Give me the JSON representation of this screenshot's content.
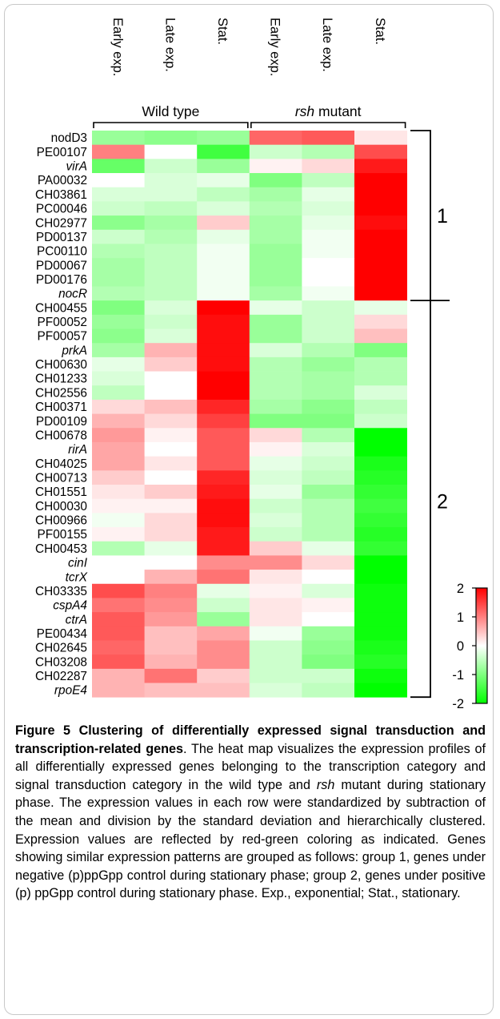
{
  "figure": {
    "conditions": [
      "Early exp.",
      "Late exp.",
      "Stat.",
      "Early exp.",
      "Late exp.",
      "Stat."
    ],
    "groups": [
      {
        "label": "Wild type",
        "italic": false
      },
      {
        "label": "rsh",
        "label_suffix": " mutant",
        "italic": true
      }
    ],
    "cluster_labels": [
      "1",
      "2"
    ],
    "colorbar": {
      "ticks": [
        "2",
        "1",
        "0",
        "-1",
        "-2"
      ],
      "low_color": "#00ff00",
      "mid_color": "#ffffff",
      "high_color": "#ff0000"
    }
  },
  "chart_data": {
    "type": "heatmap",
    "columns": [
      "Early exp.",
      "Late exp.",
      "Stat.",
      "Early exp.",
      "Late exp.",
      "Stat."
    ],
    "column_groups": [
      "Wild type",
      "Wild type",
      "Wild type",
      "rsh mutant",
      "rsh mutant",
      "rsh mutant"
    ],
    "value_range": [
      -2,
      2
    ],
    "rows": [
      {
        "gene": "nodD3",
        "italic": false,
        "cluster": 1,
        "values": [
          -0.8,
          -0.9,
          -0.8,
          1.2,
          1.3,
          0.2
        ]
      },
      {
        "gene": "PE00107",
        "italic": false,
        "cluster": 1,
        "values": [
          1.0,
          0.0,
          -1.5,
          -0.4,
          -0.6,
          1.4
        ]
      },
      {
        "gene": "virA",
        "italic": true,
        "cluster": 1,
        "values": [
          -1.2,
          -0.4,
          -0.8,
          0.1,
          0.3,
          1.8
        ]
      },
      {
        "gene": "PA00032",
        "italic": false,
        "cluster": 1,
        "values": [
          0.0,
          -0.3,
          -0.2,
          -1.0,
          -0.5,
          2.0
        ]
      },
      {
        "gene": "CH03861",
        "italic": false,
        "cluster": 1,
        "values": [
          -0.3,
          -0.3,
          -0.5,
          -0.7,
          -0.2,
          2.0
        ]
      },
      {
        "gene": "PC00046",
        "italic": false,
        "cluster": 1,
        "values": [
          -0.4,
          -0.5,
          -0.3,
          -0.6,
          -0.3,
          2.0
        ]
      },
      {
        "gene": "CH02977",
        "italic": false,
        "cluster": 1,
        "values": [
          -0.9,
          -0.7,
          0.4,
          -0.7,
          -0.2,
          1.9
        ]
      },
      {
        "gene": "PD00137",
        "italic": false,
        "cluster": 1,
        "values": [
          -0.4,
          -0.6,
          -0.2,
          -0.7,
          -0.1,
          2.0
        ]
      },
      {
        "gene": "PC00110",
        "italic": false,
        "cluster": 1,
        "values": [
          -0.6,
          -0.5,
          -0.1,
          -0.8,
          -0.1,
          2.0
        ]
      },
      {
        "gene": "PD00067",
        "italic": false,
        "cluster": 1,
        "values": [
          -0.7,
          -0.5,
          -0.1,
          -0.8,
          0.0,
          2.0
        ]
      },
      {
        "gene": "PD00176",
        "italic": false,
        "cluster": 1,
        "values": [
          -0.7,
          -0.5,
          -0.1,
          -0.8,
          0.0,
          2.0
        ]
      },
      {
        "gene": "nocR",
        "italic": true,
        "cluster": 1,
        "values": [
          -0.6,
          -0.5,
          -0.1,
          -0.7,
          -0.1,
          2.0
        ]
      },
      {
        "gene": "CH00455",
        "italic": false,
        "cluster": 2,
        "values": [
          -1.0,
          -0.3,
          2.0,
          -0.2,
          -0.4,
          -0.2
        ]
      },
      {
        "gene": "PF00052",
        "italic": false,
        "cluster": 2,
        "values": [
          -0.8,
          -0.4,
          1.9,
          -0.8,
          -0.4,
          0.3
        ]
      },
      {
        "gene": "PF00057",
        "italic": false,
        "cluster": 2,
        "values": [
          -0.9,
          -0.3,
          1.9,
          -0.8,
          -0.4,
          0.5
        ]
      },
      {
        "gene": "prkA",
        "italic": true,
        "cluster": 2,
        "values": [
          -0.7,
          0.6,
          1.9,
          -0.3,
          -0.6,
          -1.0
        ]
      },
      {
        "gene": "CH00630",
        "italic": false,
        "cluster": 2,
        "values": [
          -0.2,
          0.4,
          1.9,
          -0.6,
          -0.8,
          -0.6
        ]
      },
      {
        "gene": "CH01233",
        "italic": false,
        "cluster": 2,
        "values": [
          -0.3,
          0.0,
          2.0,
          -0.6,
          -0.7,
          -0.6
        ]
      },
      {
        "gene": "CH02556",
        "italic": false,
        "cluster": 2,
        "values": [
          -0.5,
          0.0,
          2.0,
          -0.6,
          -0.7,
          -0.3
        ]
      },
      {
        "gene": "CH00371",
        "italic": false,
        "cluster": 2,
        "values": [
          0.3,
          0.5,
          1.7,
          -0.7,
          -0.9,
          -0.5
        ]
      },
      {
        "gene": "PD00109",
        "italic": false,
        "cluster": 2,
        "values": [
          0.6,
          0.3,
          1.5,
          -1.0,
          -1.0,
          -0.4
        ]
      },
      {
        "gene": "CH00678",
        "italic": false,
        "cluster": 2,
        "values": [
          0.8,
          0.1,
          1.3,
          0.3,
          -0.6,
          -2.0
        ]
      },
      {
        "gene": "rirA",
        "italic": true,
        "cluster": 2,
        "values": [
          0.7,
          0.0,
          1.3,
          0.1,
          -0.3,
          -2.0
        ]
      },
      {
        "gene": "CH04025",
        "italic": false,
        "cluster": 2,
        "values": [
          0.7,
          0.2,
          1.3,
          -0.2,
          -0.4,
          -1.8
        ]
      },
      {
        "gene": "CH00713",
        "italic": false,
        "cluster": 2,
        "values": [
          0.4,
          0.0,
          1.7,
          -0.3,
          -0.5,
          -1.7
        ]
      },
      {
        "gene": "CH01551",
        "italic": false,
        "cluster": 2,
        "values": [
          0.2,
          0.4,
          1.8,
          -0.2,
          -0.8,
          -1.6
        ]
      },
      {
        "gene": "CH00030",
        "italic": false,
        "cluster": 2,
        "values": [
          0.1,
          0.1,
          1.9,
          -0.4,
          -0.6,
          -1.5
        ]
      },
      {
        "gene": "CH00966",
        "italic": false,
        "cluster": 2,
        "values": [
          -0.1,
          0.3,
          1.9,
          -0.3,
          -0.6,
          -1.6
        ]
      },
      {
        "gene": "PF00155",
        "italic": false,
        "cluster": 2,
        "values": [
          0.1,
          0.3,
          1.8,
          -0.4,
          -0.6,
          -1.7
        ]
      },
      {
        "gene": "CH00453",
        "italic": false,
        "cluster": 2,
        "values": [
          -0.6,
          -0.2,
          1.8,
          0.4,
          -0.2,
          -1.6
        ]
      },
      {
        "gene": "cinI",
        "italic": true,
        "cluster": 2,
        "values": [
          0.0,
          0.0,
          0.9,
          0.9,
          0.3,
          -2.0
        ]
      },
      {
        "gene": "tcrX",
        "italic": true,
        "cluster": 2,
        "values": [
          0.0,
          0.6,
          1.1,
          0.2,
          0.0,
          -2.0
        ]
      },
      {
        "gene": "CH03335",
        "italic": false,
        "cluster": 2,
        "values": [
          1.4,
          1.0,
          -0.2,
          0.1,
          -0.3,
          -1.9
        ]
      },
      {
        "gene": "cspA4",
        "italic": true,
        "cluster": 2,
        "values": [
          1.1,
          0.9,
          -0.4,
          0.2,
          0.1,
          -1.9
        ]
      },
      {
        "gene": "ctrA",
        "italic": true,
        "cluster": 2,
        "values": [
          1.3,
          0.8,
          -0.8,
          0.2,
          0.0,
          -1.9
        ]
      },
      {
        "gene": "PE00434",
        "italic": false,
        "cluster": 2,
        "values": [
          1.3,
          0.5,
          0.7,
          -0.1,
          -0.8,
          -1.9
        ]
      },
      {
        "gene": "CH02645",
        "italic": false,
        "cluster": 2,
        "values": [
          1.2,
          0.5,
          0.9,
          -0.4,
          -0.9,
          -1.8
        ]
      },
      {
        "gene": "CH03208",
        "italic": false,
        "cluster": 2,
        "values": [
          1.3,
          0.6,
          0.9,
          -0.4,
          -1.0,
          -1.7
        ]
      },
      {
        "gene": "CH02287",
        "italic": false,
        "cluster": 2,
        "values": [
          0.6,
          1.1,
          0.4,
          -0.4,
          -0.4,
          -1.9
        ]
      },
      {
        "gene": "rpoE4",
        "italic": true,
        "cluster": 2,
        "values": [
          0.6,
          0.5,
          0.5,
          -0.3,
          -0.5,
          -2.0
        ]
      }
    ]
  },
  "caption": {
    "label": "Figure 5",
    "title": "Clustering of differentially expressed signal transduction and transcription-related genes",
    "text_1": ". The heat map visualizes the expression profiles of all differentially expressed genes belonging to the transcription category and signal transduction category in the wild type and ",
    "italic_1": "rsh",
    "text_2": " mutant during stationary phase. The expression values in each row were standardized by subtraction of the mean and division by the standard deviation and hierarchically clustered. Expression values are reflected by red-green coloring as indicated. Genes showing similar expression patterns are grouped as follows: group 1, genes under negative (p)ppGpp control during stationary phase; group 2, genes under positive (p) ppGpp control during stationary phase. Exp., exponential; Stat., stationary."
  }
}
